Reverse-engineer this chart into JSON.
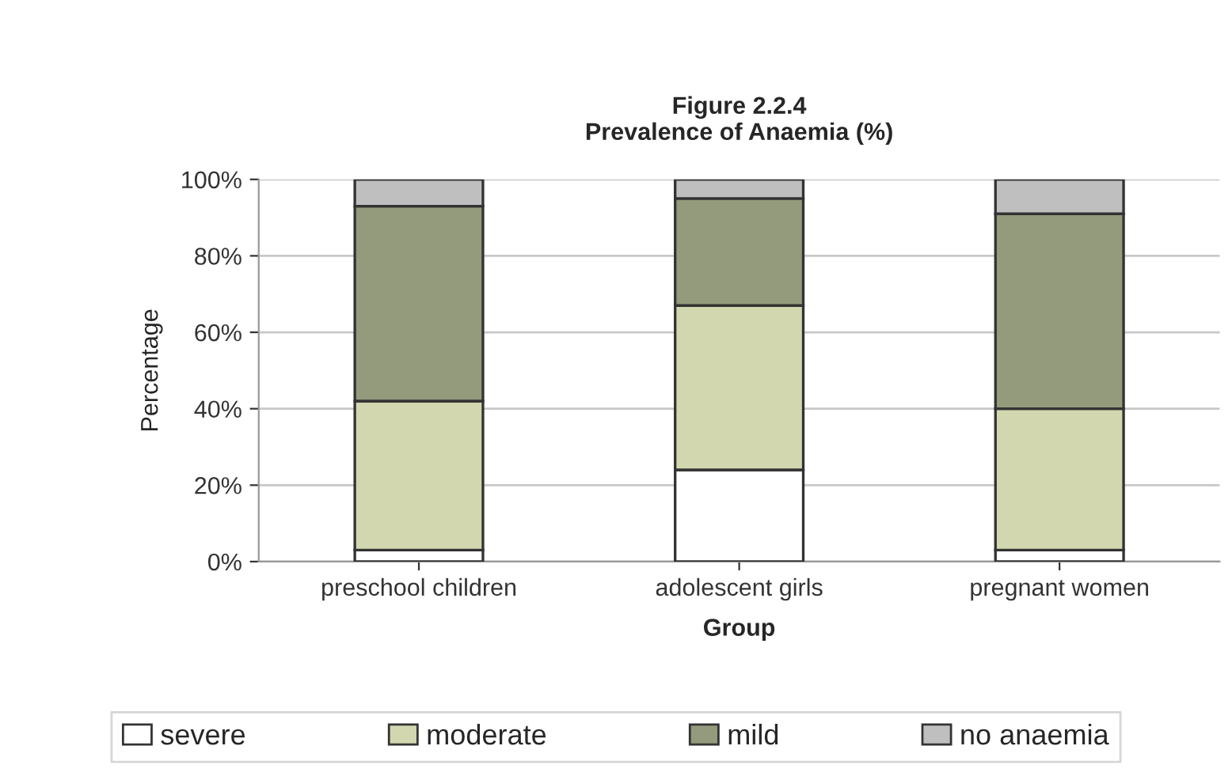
{
  "chart_data": {
    "type": "bar",
    "title": "Figure 2.2.4\nPrevalence of Anaemia (%)",
    "xlabel": "Group",
    "ylabel": "Percentage",
    "categories": [
      "preschool children",
      "adolescent girls",
      "pregnant women"
    ],
    "stacked": true,
    "series": [
      {
        "name": "severe",
        "color": "#ffffff",
        "values": [
          3,
          24,
          3
        ]
      },
      {
        "name": "moderate",
        "color": "#d3d7b0",
        "values": [
          39,
          43,
          37
        ]
      },
      {
        "name": "mild",
        "color": "#949a7c",
        "values": [
          51,
          28,
          51
        ]
      },
      {
        "name": "no anaemia",
        "color": "#bfbfbf",
        "values": [
          7,
          5,
          9
        ]
      }
    ],
    "ylim": [
      0,
      100
    ],
    "yticks": [
      {
        "value": 0,
        "label": "0%"
      },
      {
        "value": 20,
        "label": "20%"
      },
      {
        "value": 40,
        "label": "40%"
      },
      {
        "value": 60,
        "label": "60%"
      },
      {
        "value": 80,
        "label": "80%"
      },
      {
        "value": 100,
        "label": "100%"
      }
    ],
    "grid": "y",
    "legend": "bottom"
  }
}
